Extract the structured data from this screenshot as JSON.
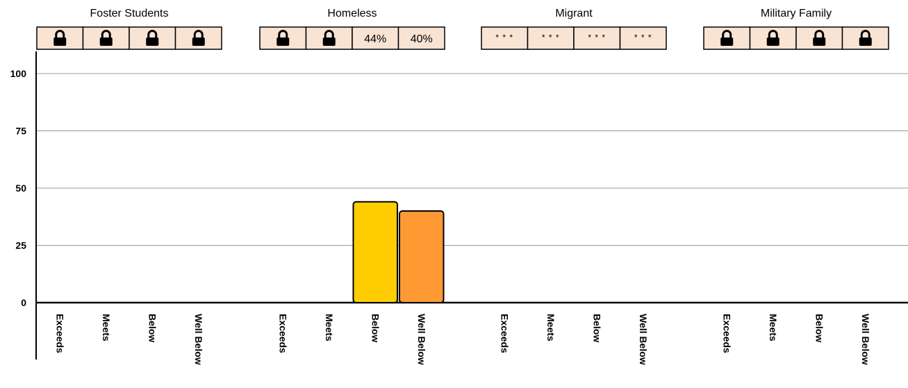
{
  "chart_data": {
    "type": "bar",
    "groups": [
      {
        "name": "Foster Students",
        "categories": [
          "Exceeds",
          "Meets",
          "Below",
          "Well Below"
        ],
        "cells": [
          "lock",
          "lock",
          "lock",
          "lock"
        ],
        "values": [
          null,
          null,
          null,
          null
        ]
      },
      {
        "name": "Homeless",
        "categories": [
          "Exceeds",
          "Meets",
          "Below",
          "Well Below"
        ],
        "cells": [
          "lock",
          "lock",
          "44%",
          "40%"
        ],
        "values": [
          null,
          null,
          44,
          40
        ]
      },
      {
        "name": "Migrant",
        "categories": [
          "Exceeds",
          "Meets",
          "Below",
          "Well Below"
        ],
        "cells": [
          "* * *",
          "* * *",
          "* * *",
          "* * *"
        ],
        "values": [
          null,
          null,
          null,
          null
        ]
      },
      {
        "name": "Military Family",
        "categories": [
          "Exceeds",
          "Meets",
          "Below",
          "Well Below"
        ],
        "cells": [
          "lock",
          "lock",
          "lock",
          "lock"
        ],
        "values": [
          null,
          null,
          null,
          null
        ]
      }
    ],
    "yticks": [
      "0",
      "25",
      "50",
      "75",
      "100"
    ],
    "ylim": [
      0,
      100
    ],
    "grid": true,
    "colors": {
      "Exceeds": "#2e7d32",
      "Meets": "#8bc34a",
      "Below": "#ffcc00",
      "Well Below": "#ff9933",
      "cell_fill": "#f9e3d3",
      "grid": "#999999",
      "axis": "#000000"
    },
    "icons": {
      "lock": "padlock-icon"
    }
  }
}
